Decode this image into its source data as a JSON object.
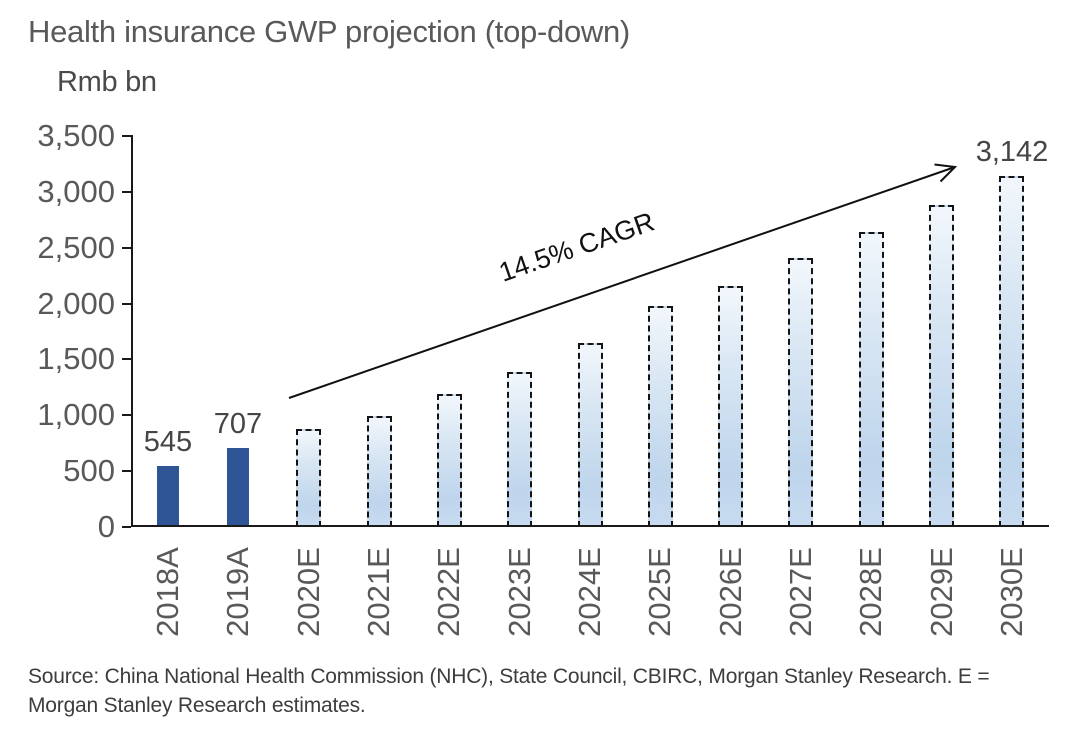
{
  "header": {
    "title": "Health insurance GWP projection (top-down)",
    "unit_label": "Rmb bn"
  },
  "chart_data": {
    "type": "bar",
    "title": "Health insurance GWP projection (top-down)",
    "ylabel": "Rmb bn",
    "ylim": [
      0,
      3500
    ],
    "ytick_step": 500,
    "ytick_labels": [
      "0",
      "500",
      "1,000",
      "1,500",
      "2,000",
      "2,500",
      "3,000",
      "3,500"
    ],
    "grid": false,
    "legend": "none",
    "categories": [
      "2018A",
      "2019A",
      "2020E",
      "2021E",
      "2022E",
      "2023E",
      "2024E",
      "2025E",
      "2026E",
      "2027E",
      "2028E",
      "2029E",
      "2030E"
    ],
    "bars": [
      {
        "category": "2018A",
        "value": 545,
        "type": "actual",
        "label": "545"
      },
      {
        "category": "2019A",
        "value": 707,
        "type": "actual",
        "label": "707"
      },
      {
        "category": "2020E",
        "value": 880,
        "type": "estimate"
      },
      {
        "category": "2021E",
        "value": 990,
        "type": "estimate"
      },
      {
        "category": "2022E",
        "value": 1190,
        "type": "estimate"
      },
      {
        "category": "2023E",
        "value": 1390,
        "type": "estimate"
      },
      {
        "category": "2024E",
        "value": 1650,
        "type": "estimate"
      },
      {
        "category": "2025E",
        "value": 1975,
        "type": "estimate"
      },
      {
        "category": "2026E",
        "value": 2160,
        "type": "estimate"
      },
      {
        "category": "2027E",
        "value": 2405,
        "type": "estimate"
      },
      {
        "category": "2028E",
        "value": 2645,
        "type": "estimate"
      },
      {
        "category": "2029E",
        "value": 2880,
        "type": "estimate"
      },
      {
        "category": "2030E",
        "value": 3142,
        "type": "estimate",
        "label": "3,142"
      }
    ],
    "annotation": {
      "text": "14.5% CAGR"
    },
    "colors": {
      "actual_bar": "#2f5597",
      "estimate_gradient_top": "#f2f7fc",
      "estimate_gradient_bottom": "#bed5ec",
      "estimate_border": "#141414",
      "axis": "#1a1a1a",
      "value_label_text": "#454545",
      "tick_label_text": "#595959"
    }
  },
  "footer": {
    "source": "Source: China National Health Commission (NHC), State Council, CBIRC, Morgan Stanley Research. E = Morgan Stanley Research estimates."
  }
}
